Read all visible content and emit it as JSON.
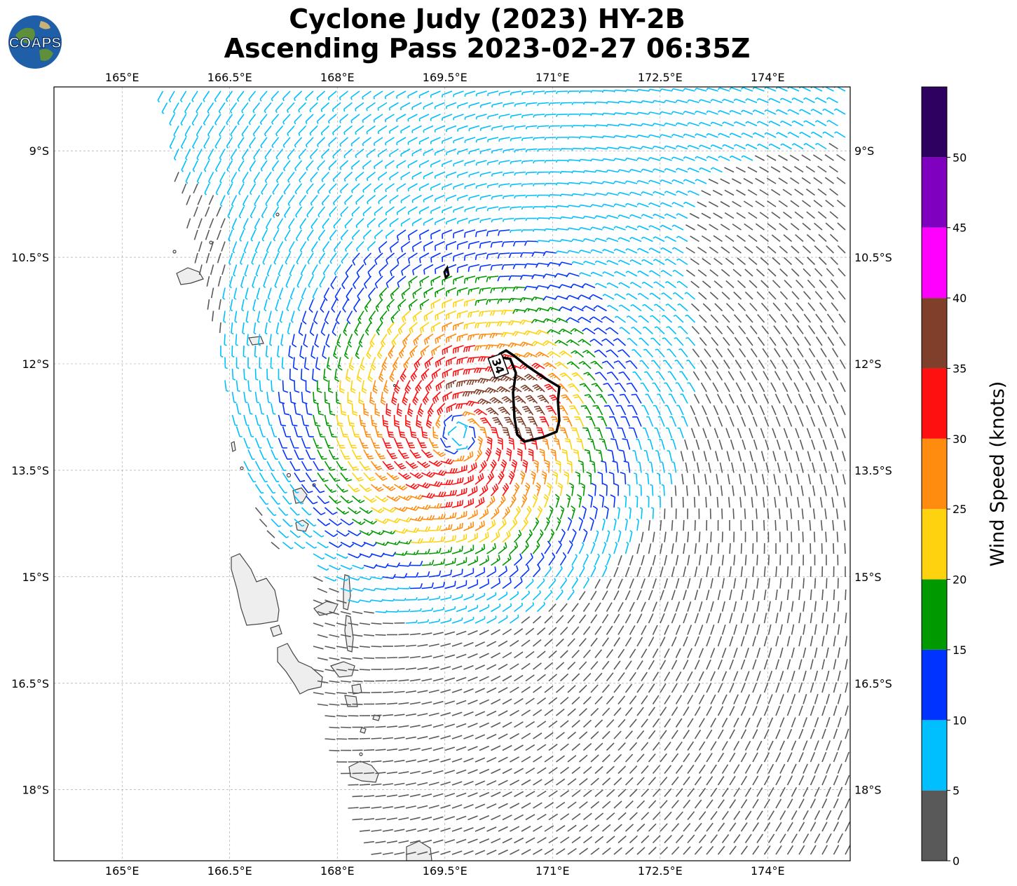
{
  "header": {
    "title_line1": "Cyclone Judy (2023) HY-2B",
    "title_line2": "Ascending Pass 2023-02-27 06:35Z",
    "logo_text": "COAPS"
  },
  "chart_data": {
    "type": "wind-barb-map",
    "title": "Cyclone Judy (2023) HY-2B Ascending Pass 2023-02-27 06:35Z",
    "x_ticks": [
      "165°E",
      "166.5°E",
      "168°E",
      "169.5°E",
      "171°E",
      "172.5°E",
      "174°E"
    ],
    "x_tick_values": [
      165,
      166.5,
      168,
      169.5,
      171,
      172.5,
      174
    ],
    "y_ticks": [
      "9°S",
      "10.5°S",
      "12°S",
      "13.5°S",
      "15°S",
      "16.5°S",
      "18°S"
    ],
    "y_tick_values": [
      -9,
      -10.5,
      -12,
      -13.5,
      -15,
      -16.5,
      -18
    ],
    "lon_range": [
      164.05,
      175.15
    ],
    "lat_range": [
      -19.0,
      -8.1
    ],
    "storm_center": {
      "lon": 169.7,
      "lat": -13.0
    },
    "contour_label": "34",
    "contour_value_knots": 34,
    "colorbar": {
      "label": "Wind Speed (knots)",
      "ticks": [
        "0",
        "5",
        "10",
        "15",
        "20",
        "25",
        "30",
        "35",
        "40",
        "45",
        "50"
      ],
      "bins": [
        {
          "min": 0,
          "max": 5,
          "color": "#595959"
        },
        {
          "min": 5,
          "max": 10,
          "color": "#00bfff"
        },
        {
          "min": 10,
          "max": 15,
          "color": "#0033ff"
        },
        {
          "min": 15,
          "max": 20,
          "color": "#009900"
        },
        {
          "min": 20,
          "max": 25,
          "color": "#ffd20f"
        },
        {
          "min": 25,
          "max": 30,
          "color": "#ff8c0f"
        },
        {
          "min": 30,
          "max": 35,
          "color": "#ff1010"
        },
        {
          "min": 35,
          "max": 40,
          "color": "#7f3f2a"
        },
        {
          "min": 40,
          "max": 45,
          "color": "#ff00ff"
        },
        {
          "min": 45,
          "max": 50,
          "color": "#8000c0"
        },
        {
          "min": 50,
          "max": 55,
          "color": "#2e0060"
        }
      ]
    }
  }
}
